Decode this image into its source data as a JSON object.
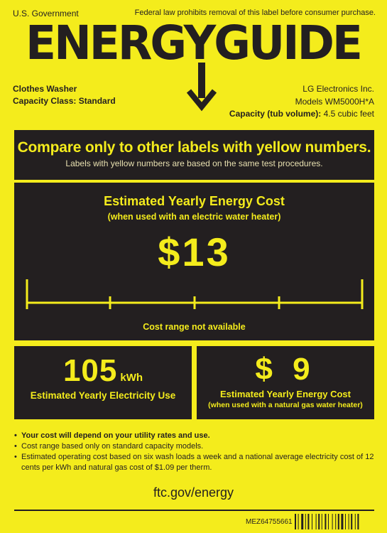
{
  "header": {
    "government": "U.S. Government",
    "federal_notice": "Federal law prohibits removal of this label before consumer purchase.",
    "title": "ENERGYGUIDE"
  },
  "product": {
    "type": "Clothes Washer",
    "capacity_class": "Capacity Class: Standard",
    "manufacturer": "LG Electronics Inc.",
    "models": "Models WM5000H*A",
    "capacity_label": "Capacity (tub volume):",
    "capacity_value": "4.5 cubic feet"
  },
  "compare": {
    "headline": "Compare only to other labels with yellow numbers.",
    "subline": "Labels with yellow numbers are based on the same test procedures."
  },
  "yearly_cost": {
    "title": "Estimated Yearly Energy Cost",
    "subtitle": "(when used with an electric water heater)",
    "value": "$13",
    "range_note": "Cost range not available"
  },
  "electricity": {
    "value": "105",
    "unit": "kWh",
    "label": "Estimated Yearly Electricity Use"
  },
  "gas_cost": {
    "value": "$ 9",
    "label": "Estimated Yearly Energy Cost",
    "sublabel": "(when used with a natural gas water heater)"
  },
  "notes": [
    "Your cost will depend on your utility rates and use.",
    "Cost range based only on standard capacity models.",
    "Estimated operating cost based on six wash loads a week and a national average electricity cost of 12 cents per kWh and natural gas cost of $1.09 per therm."
  ],
  "footer": {
    "url": "ftc.gov/energy",
    "label_code": "MEZ64755661"
  },
  "colors": {
    "label_yellow": "#f4ec1c",
    "ink": "#231f20"
  }
}
